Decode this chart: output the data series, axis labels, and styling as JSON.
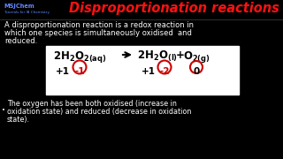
{
  "title": "Disproportionation reactions",
  "title_color": "#FF1111",
  "bg_color": "#000000",
  "logo_line1": "MSJChem",
  "logo_line2": "Tutorials for IB Chemistry",
  "logo_color": "#6688FF",
  "body_text1": "A disproportionation reaction is a redox reaction in",
  "body_text2": "which one species is simultaneously oxidised  and",
  "body_text3": "reduced.",
  "bottom_text1": "The oxygen has been both oxidised (increase in",
  "bottom_text2": "oxidation state) and reduced (decrease in oxidation",
  "bottom_text3": "state).",
  "text_color": "#ffffff",
  "eq_text_color": "#000000",
  "circle_color": "#CC0000",
  "box_color": "#ffffff"
}
